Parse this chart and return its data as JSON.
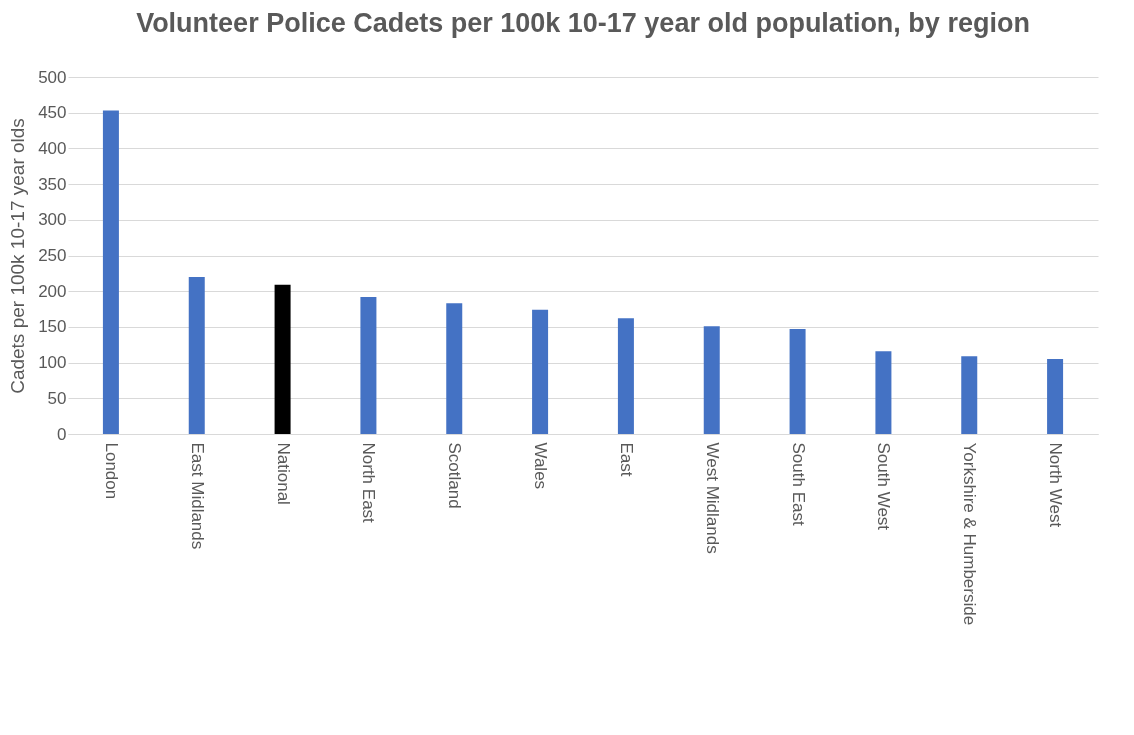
{
  "chart_data": {
    "type": "bar",
    "title": "Volunteer Police Cadets per 100k 10-17 year old population, by region",
    "ylabel": "Cadets per 100k 10-17 year olds",
    "categories": [
      "London",
      "East Midlands",
      "National",
      "North East",
      "Scotland",
      "Wales",
      "East",
      "West Midlands",
      "South East",
      "South West",
      "Yorkshire & Humberside",
      "North West"
    ],
    "values": [
      453,
      220,
      209,
      192,
      183,
      174,
      162,
      151,
      147,
      116,
      109,
      105
    ],
    "colors": [
      "#4472c4",
      "#4472c4",
      "#000000",
      "#4472c4",
      "#4472c4",
      "#4472c4",
      "#4472c4",
      "#4472c4",
      "#4472c4",
      "#4472c4",
      "#4472c4",
      "#4472c4"
    ],
    "ylim": [
      0,
      500
    ],
    "yticks": [
      0,
      50,
      100,
      150,
      200,
      250,
      300,
      350,
      400,
      450,
      500
    ],
    "grid": "y"
  }
}
